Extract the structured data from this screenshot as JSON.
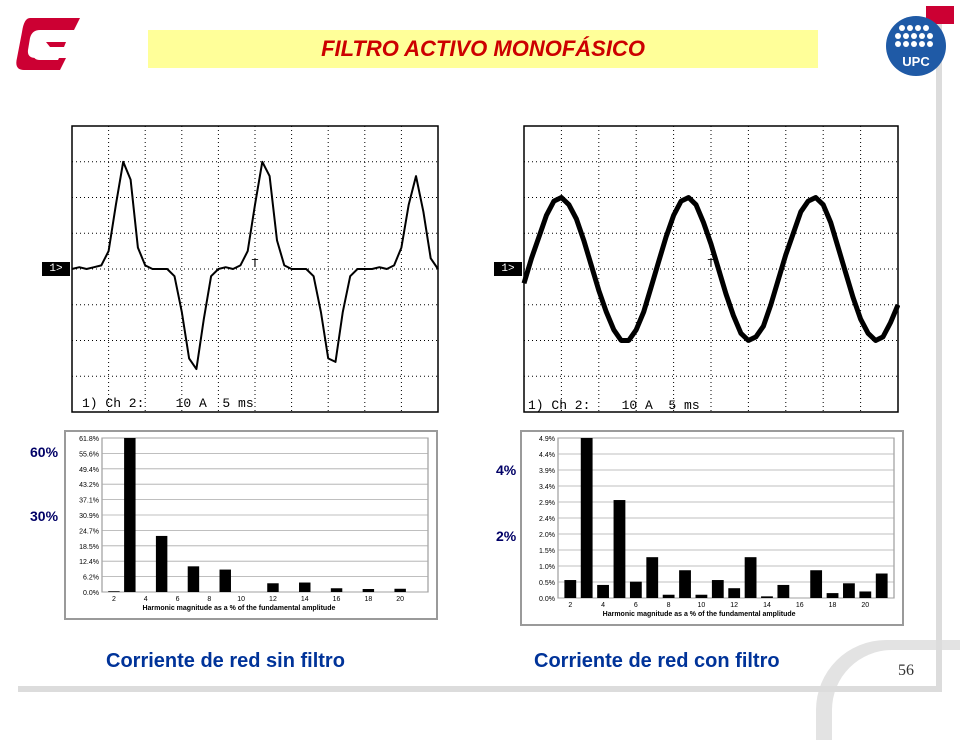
{
  "title": "FILTRO ACTIVO MONOFÁSICO",
  "page_number": "56",
  "colors": {
    "title_bg": "#ffff99",
    "title_text": "#cc0000",
    "caption": "#003399",
    "logo_red": "#cc0033",
    "upc_blue": "#1f5aa6"
  },
  "logos": {
    "left": "c-logo-icon",
    "right": "upc-logo-icon",
    "upc_text": "UPC"
  },
  "chart_data": [
    {
      "type": "line",
      "panel": "oscilloscope-sin-filtro",
      "channel_marker": "1>",
      "trigger_marker": "T",
      "scope_label": "1) Ch 2:    10 A  5 ms",
      "grid": true,
      "x_divisions": 10,
      "y_divisions": 8,
      "x": [
        0,
        0.2,
        0.4,
        0.6,
        0.8,
        1.0,
        1.2,
        1.4,
        1.6,
        1.8,
        2.0,
        2.2,
        2.4,
        2.6,
        2.8,
        3.0,
        3.2,
        3.4,
        3.6,
        3.8,
        4.0,
        4.2,
        4.4,
        4.6,
        4.8,
        5.0,
        5.2,
        5.4,
        5.6,
        5.8,
        6.0,
        6.2,
        6.4,
        6.6,
        6.8,
        7.0,
        7.2,
        7.4,
        7.6,
        7.8,
        8.0,
        8.2,
        8.4,
        8.6,
        8.8,
        9.0,
        9.2,
        9.4,
        9.6,
        9.8,
        10.0
      ],
      "values": [
        0,
        0.05,
        0,
        0.05,
        0.1,
        0.5,
        1.8,
        3.0,
        2.5,
        0.6,
        0.1,
        0,
        0,
        0,
        -0.2,
        -1.2,
        -2.5,
        -2.8,
        -1.4,
        -0.2,
        0,
        0.05,
        0,
        0.1,
        0.5,
        1.8,
        3.0,
        2.6,
        0.8,
        0.1,
        0,
        0,
        0,
        -0.2,
        -1.2,
        -2.5,
        -2.6,
        -1.2,
        -0.2,
        0,
        0,
        0,
        0.05,
        0,
        0.1,
        0.6,
        1.8,
        2.6,
        1.6,
        0.3,
        0
      ],
      "ylim": [
        -4,
        4
      ]
    },
    {
      "type": "line",
      "panel": "oscilloscope-con-filtro",
      "channel_marker": "1>",
      "trigger_marker": "T",
      "scope_label": "1) Ch 2:    10 A  5 ms",
      "grid": true,
      "x_divisions": 10,
      "y_divisions": 8,
      "x": [
        0,
        0.2,
        0.4,
        0.6,
        0.8,
        1.0,
        1.2,
        1.4,
        1.6,
        1.8,
        2.0,
        2.2,
        2.4,
        2.6,
        2.8,
        3.0,
        3.2,
        3.4,
        3.6,
        3.8,
        4.0,
        4.2,
        4.4,
        4.6,
        4.8,
        5.0,
        5.2,
        5.4,
        5.6,
        5.8,
        6.0,
        6.2,
        6.4,
        6.6,
        6.8,
        7.0,
        7.2,
        7.4,
        7.6,
        7.8,
        8.0,
        8.2,
        8.4,
        8.6,
        8.8,
        9.0,
        9.2,
        9.4,
        9.6,
        9.8,
        10.0
      ],
      "values": [
        -0.4,
        0.3,
        0.9,
        1.5,
        1.9,
        2.0,
        1.8,
        1.4,
        0.8,
        0.1,
        -0.6,
        -1.2,
        -1.7,
        -2.0,
        -2.0,
        -1.7,
        -1.2,
        -0.5,
        0.2,
        0.9,
        1.5,
        1.9,
        2.0,
        1.8,
        1.3,
        0.7,
        0,
        -0.7,
        -1.3,
        -1.8,
        -2.0,
        -1.9,
        -1.6,
        -1.0,
        -0.3,
        0.4,
        1.0,
        1.6,
        1.9,
        2.0,
        1.8,
        1.3,
        0.6,
        -0.1,
        -0.8,
        -1.4,
        -1.8,
        -2.0,
        -1.9,
        -1.5,
        -1.0
      ],
      "ylim": [
        -4,
        4
      ]
    },
    {
      "type": "bar",
      "panel": "harmonics-sin-filtro",
      "categories": [
        2,
        3,
        4,
        5,
        6,
        7,
        8,
        9,
        10,
        11,
        12,
        13,
        14,
        15,
        16,
        17,
        18,
        19,
        20,
        21
      ],
      "values": [
        0.3,
        61.8,
        0,
        22.5,
        0,
        10.3,
        0,
        9.0,
        0,
        0,
        3.5,
        0,
        3.8,
        0,
        1.5,
        0,
        1.2,
        0,
        1.3,
        0
      ],
      "ylim": [
        0,
        61.8
      ],
      "y_ticks": [
        "61.8%",
        "55.6%",
        "49.4%",
        "43.2%",
        "37.1%",
        "30.9%",
        "24.7%",
        "18.5%",
        "12.4%",
        "6.2%",
        "0.0%"
      ],
      "x_ticks": [
        "2",
        "4",
        "6",
        "8",
        "10",
        "12",
        "14",
        "16",
        "18",
        "20"
      ],
      "xlabel": "Harmonic magnitude as a % of the fundamental amplitude",
      "side_labels": [
        "60%",
        "30%"
      ]
    },
    {
      "type": "bar",
      "panel": "harmonics-con-filtro",
      "categories": [
        2,
        3,
        4,
        5,
        6,
        7,
        8,
        9,
        10,
        11,
        12,
        13,
        14,
        15,
        16,
        17,
        18,
        19,
        20,
        21
      ],
      "values": [
        0.55,
        4.9,
        0.4,
        3.0,
        0.5,
        1.25,
        0.1,
        0.85,
        0.1,
        0.55,
        0.3,
        1.25,
        0.05,
        0.4,
        0,
        0.85,
        0.15,
        0.45,
        0.2,
        0.75
      ],
      "ylim": [
        0,
        4.9
      ],
      "y_ticks": [
        "4.9%",
        "4.4%",
        "3.9%",
        "3.4%",
        "2.9%",
        "2.4%",
        "2.0%",
        "1.5%",
        "1.0%",
        "0.5%",
        "0.0%"
      ],
      "x_ticks": [
        "2",
        "4",
        "6",
        "8",
        "10",
        "12",
        "14",
        "16",
        "18",
        "20"
      ],
      "xlabel": "Harmonic magnitude as a % of the fundamental amplitude",
      "side_labels": [
        "4%",
        "2%"
      ]
    }
  ],
  "captions": {
    "left": "Corriente de red sin filtro",
    "right": "Corriente de red con filtro"
  }
}
